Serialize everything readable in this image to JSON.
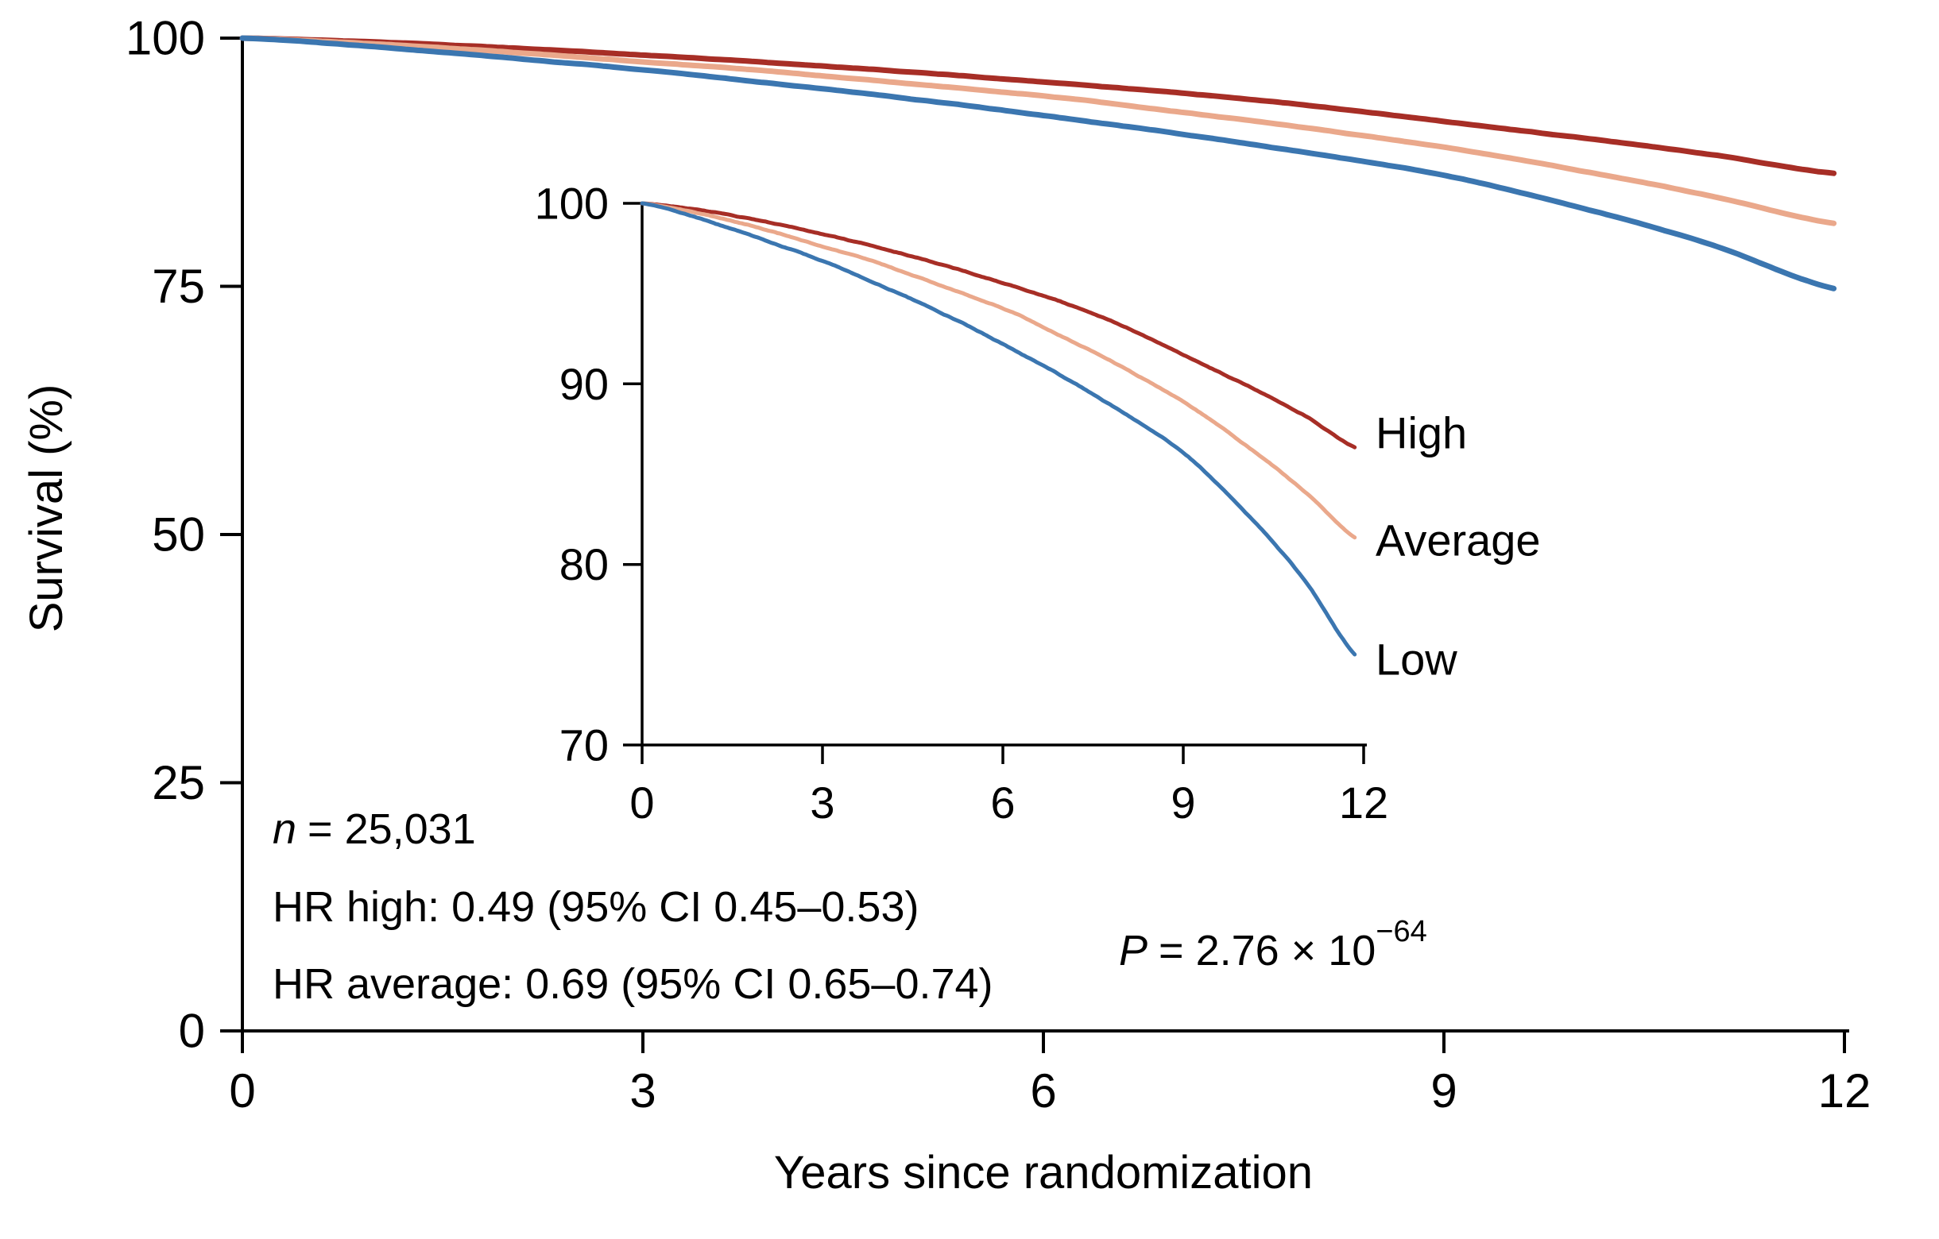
{
  "figure": {
    "main_plot": {
      "ylabel": "Survival (%)",
      "xlabel": "Years since randomization",
      "y_tick_labels": [
        "100",
        "75",
        "50",
        "25",
        "0"
      ],
      "x_tick_labels": [
        "0",
        "3",
        "6",
        "9",
        "12"
      ]
    },
    "inset_plot": {
      "y_tick_labels": [
        "100",
        "90",
        "80",
        "70"
      ],
      "x_tick_labels": [
        "0",
        "3",
        "6",
        "9",
        "12"
      ],
      "curve_labels": [
        "High",
        "Average",
        "Low"
      ]
    },
    "annotations": {
      "n_italic": "n",
      "n_rest": "= 25,031",
      "hr_high": "HR high: 0.49 (95% CI 0.45–0.53)",
      "hr_average": "HR average: 0.69 (95% CI 0.65–0.74)",
      "p_italic": "P",
      "p_rest": "= 2.76 × 10",
      "p_exponent": "−64"
    },
    "colors": {
      "high": "#a72e26",
      "average": "#eaa88b",
      "low": "#3b76b0"
    }
  },
  "chart_data": {
    "type": "line",
    "title": "",
    "xlabel": "Years since randomization",
    "ylabel": "Survival (%)",
    "x": [
      0,
      1,
      2,
      3,
      4,
      5,
      6,
      7,
      8,
      9,
      10,
      11,
      12
    ],
    "series": [
      {
        "name": "High",
        "color": "#a72e26",
        "values": [
          100,
          99.6,
          99.0,
          98.3,
          97.5,
          96.6,
          95.6,
          94.5,
          93.2,
          91.6,
          90.0,
          88.3,
          86.3
        ]
      },
      {
        "name": "Average",
        "color": "#eaa88b",
        "values": [
          100,
          99.4,
          98.6,
          97.6,
          96.6,
          95.4,
          94.2,
          92.6,
          90.9,
          89.0,
          86.7,
          84.1,
          81.2
        ]
      },
      {
        "name": "Low",
        "color": "#3b76b0",
        "values": [
          100,
          99.1,
          98.0,
          96.8,
          95.4,
          93.9,
          92.2,
          90.4,
          88.4,
          86.2,
          83.0,
          79.2,
          74.6
        ]
      }
    ],
    "xlim": [
      0,
      12
    ],
    "xticks": [
      0,
      3,
      6,
      9,
      12
    ],
    "main_ylim": [
      0,
      100
    ],
    "main_yticks": [
      0,
      25,
      50,
      75,
      100
    ],
    "inset_ylim": [
      70,
      100
    ],
    "inset_yticks": [
      70,
      80,
      90,
      100
    ],
    "grid": false,
    "legend_position": "labels-right-of-inset-curves",
    "annotations": [
      "n = 25,031",
      "HR high: 0.49 (95% CI 0.45–0.53)",
      "HR average: 0.69 (95% CI 0.65–0.74)",
      "P = 2.76 × 10−64"
    ]
  }
}
